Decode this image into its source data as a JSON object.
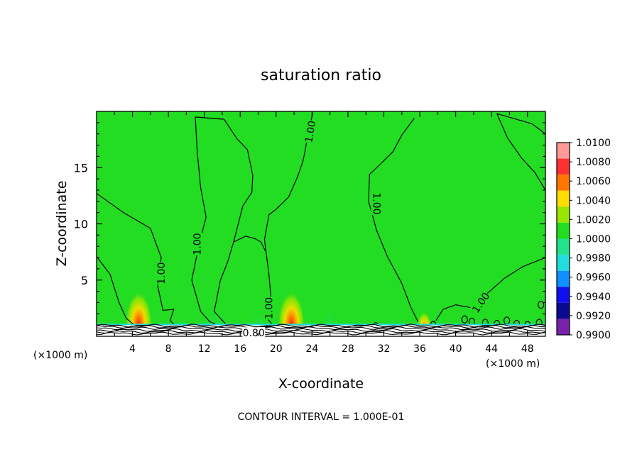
{
  "chart_data": {
    "type": "heatmap",
    "title": "saturation ratio",
    "xlabel": "X-coordinate",
    "ylabel": "Z-coordinate",
    "x_unit_left": "(×1000 m)",
    "x_unit_right": "(×1000 m)",
    "footer": "CONTOUR INTERVAL = 1.000E-01",
    "xlim": [
      0,
      50
    ],
    "ylim": [
      0,
      20
    ],
    "x_ticks": [
      4,
      8,
      12,
      16,
      20,
      24,
      28,
      32,
      36,
      40,
      44,
      48
    ],
    "y_ticks": [
      5,
      10,
      15
    ],
    "colorbar": {
      "levels": [
        "1.0100",
        "1.0080",
        "1.0060",
        "1.0040",
        "1.0020",
        "1.0000",
        "0.9980",
        "0.9960",
        "0.9940",
        "0.9920",
        "0.9900"
      ],
      "colors": [
        "#ff9999",
        "#ff3030",
        "#ff7700",
        "#ffdd00",
        "#99e600",
        "#22dd22",
        "#22e38a",
        "#22dddd",
        "#1090ff",
        "#1010ee",
        "#0a0a90",
        "#7722aa"
      ]
    },
    "background_value": 1.0,
    "contour_labels": [
      {
        "text": "1.00",
        "x": 7.2,
        "z": 5.6,
        "rot": -90
      },
      {
        "text": "1.00",
        "x": 11.2,
        "z": 8.2,
        "rot": -90
      },
      {
        "text": "1.00",
        "x": 23.8,
        "z": 18.2,
        "rot": -80
      },
      {
        "text": "1.00",
        "x": 31.2,
        "z": 11.8,
        "rot": 90
      },
      {
        "text": "1.00",
        "x": 19.2,
        "z": 2.5,
        "rot": -90
      },
      {
        "text": "1.00",
        "x": 42.8,
        "z": 3.0,
        "rot": -55
      },
      {
        "text": "0.80",
        "x": 17.5,
        "z": 0.3,
        "rot": 0
      }
    ],
    "hotspots": [
      {
        "x": 4.7,
        "z": 2.2,
        "peak": 1.007
      },
      {
        "x": 21.7,
        "z": 2.2,
        "peak": 1.007
      },
      {
        "x": 36.5,
        "z": 1.2,
        "peak": 1.004
      }
    ]
  }
}
